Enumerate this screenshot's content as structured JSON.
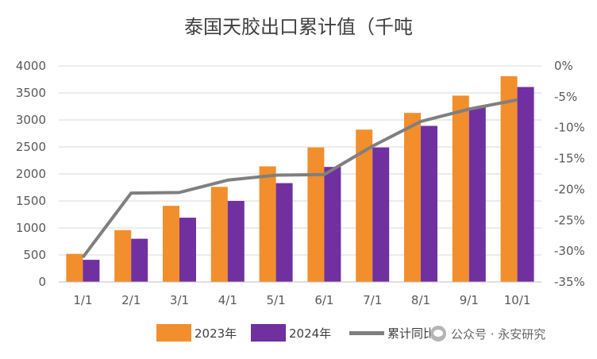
{
  "chart_data": {
    "type": "bar",
    "title": "泰国天胶出口累计值（千吨",
    "categories": [
      "1/1",
      "2/1",
      "3/1",
      "4/1",
      "5/1",
      "6/1",
      "7/1",
      "8/1",
      "9/1",
      "10/1"
    ],
    "series": [
      {
        "name": "2023年",
        "type": "bar",
        "axis": "left",
        "color": "#f28e2b",
        "values": [
          520,
          960,
          1410,
          1760,
          2140,
          2490,
          2820,
          3130,
          3450,
          3810
        ]
      },
      {
        "name": "2024年",
        "type": "bar",
        "axis": "left",
        "color": "#7030a0",
        "values": [
          410,
          800,
          1190,
          1500,
          1830,
          2130,
          2490,
          2890,
          3230,
          3610
        ]
      },
      {
        "name": "累计同比",
        "type": "line",
        "axis": "right",
        "color": "#7f7f7f",
        "values": [
          -0.31,
          -0.206,
          -0.205,
          -0.185,
          -0.177,
          -0.176,
          -0.13,
          -0.09,
          -0.07,
          -0.055
        ]
      }
    ],
    "left_axis": {
      "ylim": [
        0,
        4000
      ],
      "ticks": [
        "0",
        "500",
        "1000",
        "1500",
        "2000",
        "2500",
        "3000",
        "3500",
        "4000"
      ]
    },
    "right_axis": {
      "ylim": [
        -0.35,
        0
      ],
      "ticks": [
        "0%",
        "-5%",
        "-10%",
        "-15%",
        "-20%",
        "-25%",
        "-30%",
        "-35%"
      ]
    },
    "grid": true,
    "legend": "bottom"
  },
  "legend": {
    "s2023": "2023年",
    "s2024": "2024年",
    "yoy": "累计同比"
  },
  "watermark": {
    "text": "公众号 · 永安研究",
    "icon": "wechat-icon"
  }
}
